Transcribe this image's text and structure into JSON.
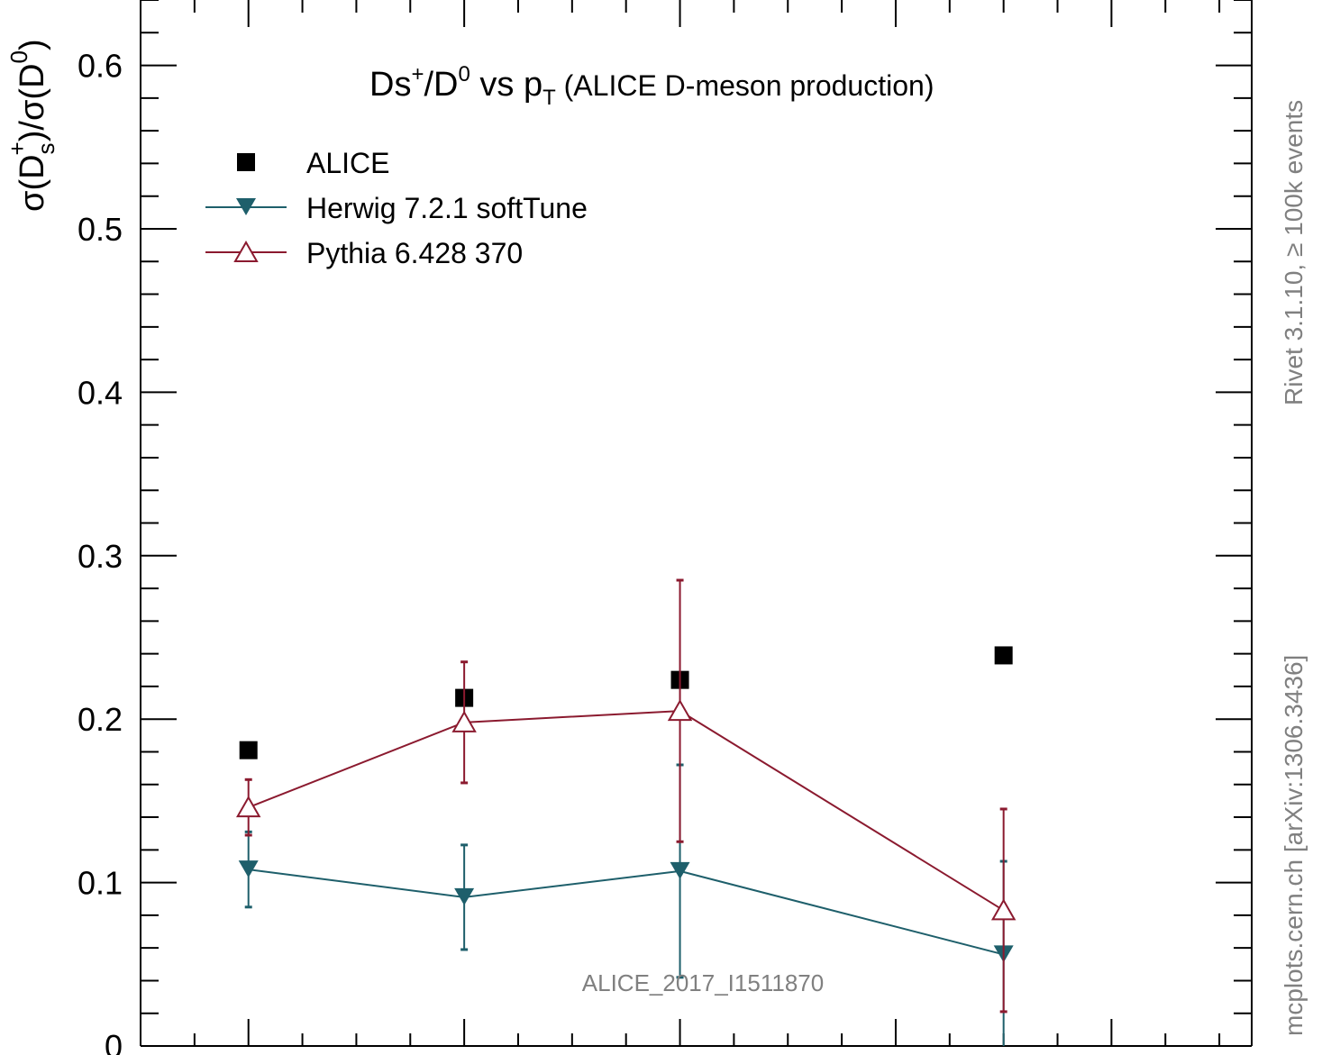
{
  "chart_data": {
    "type": "scatter",
    "title_main": "Ds",
    "title_sup1": "+",
    "title_mid": "/D",
    "title_sup2": "0",
    "title_vs": " vs p",
    "title_sub": "T",
    "title_tail": " (ALICE D-meson production)",
    "ylabel": "σ(D_s^+)/σ(D^0)",
    "ylim": [
      0,
      0.64
    ],
    "xlim": [
      0,
      10.3
    ],
    "yticks": [
      0,
      0.1,
      0.2,
      0.3,
      0.4,
      0.5,
      0.6
    ],
    "ytick_labels": [
      "0",
      "0.1",
      "0.2",
      "0.3",
      "0.4",
      "0.5",
      "0.6"
    ],
    "watermark": "ALICE_2017_I1511870",
    "side_label_top": "Rivet 3.1.10, ≥ 100k events",
    "side_label_bottom": "mcplots.cern.ch [arXiv:1306.3436]",
    "legend_position": "top-left",
    "series": [
      {
        "name": "ALICE",
        "marker": "square",
        "color": "#000000",
        "x": [
          1.0,
          3.0,
          5.0,
          8.0
        ],
        "y": [
          0.181,
          0.213,
          0.224,
          0.239
        ],
        "err": [
          0,
          0,
          0,
          0
        ]
      },
      {
        "name": "Herwig 7.2.1 softTune",
        "marker": "triangle-down",
        "color": "#1e5f6b",
        "x": [
          1.0,
          3.0,
          5.0,
          8.0
        ],
        "y": [
          0.108,
          0.091,
          0.107,
          0.056
        ],
        "err": [
          0.023,
          0.032,
          0.065,
          0.057
        ]
      },
      {
        "name": "Pythia 6.428 370",
        "marker": "triangle-up-open",
        "color": "#8b1a2f",
        "x": [
          1.0,
          3.0,
          5.0,
          8.0
        ],
        "y": [
          0.146,
          0.198,
          0.205,
          0.083
        ],
        "err": [
          0.017,
          0.037,
          0.08,
          0.062
        ]
      }
    ]
  }
}
